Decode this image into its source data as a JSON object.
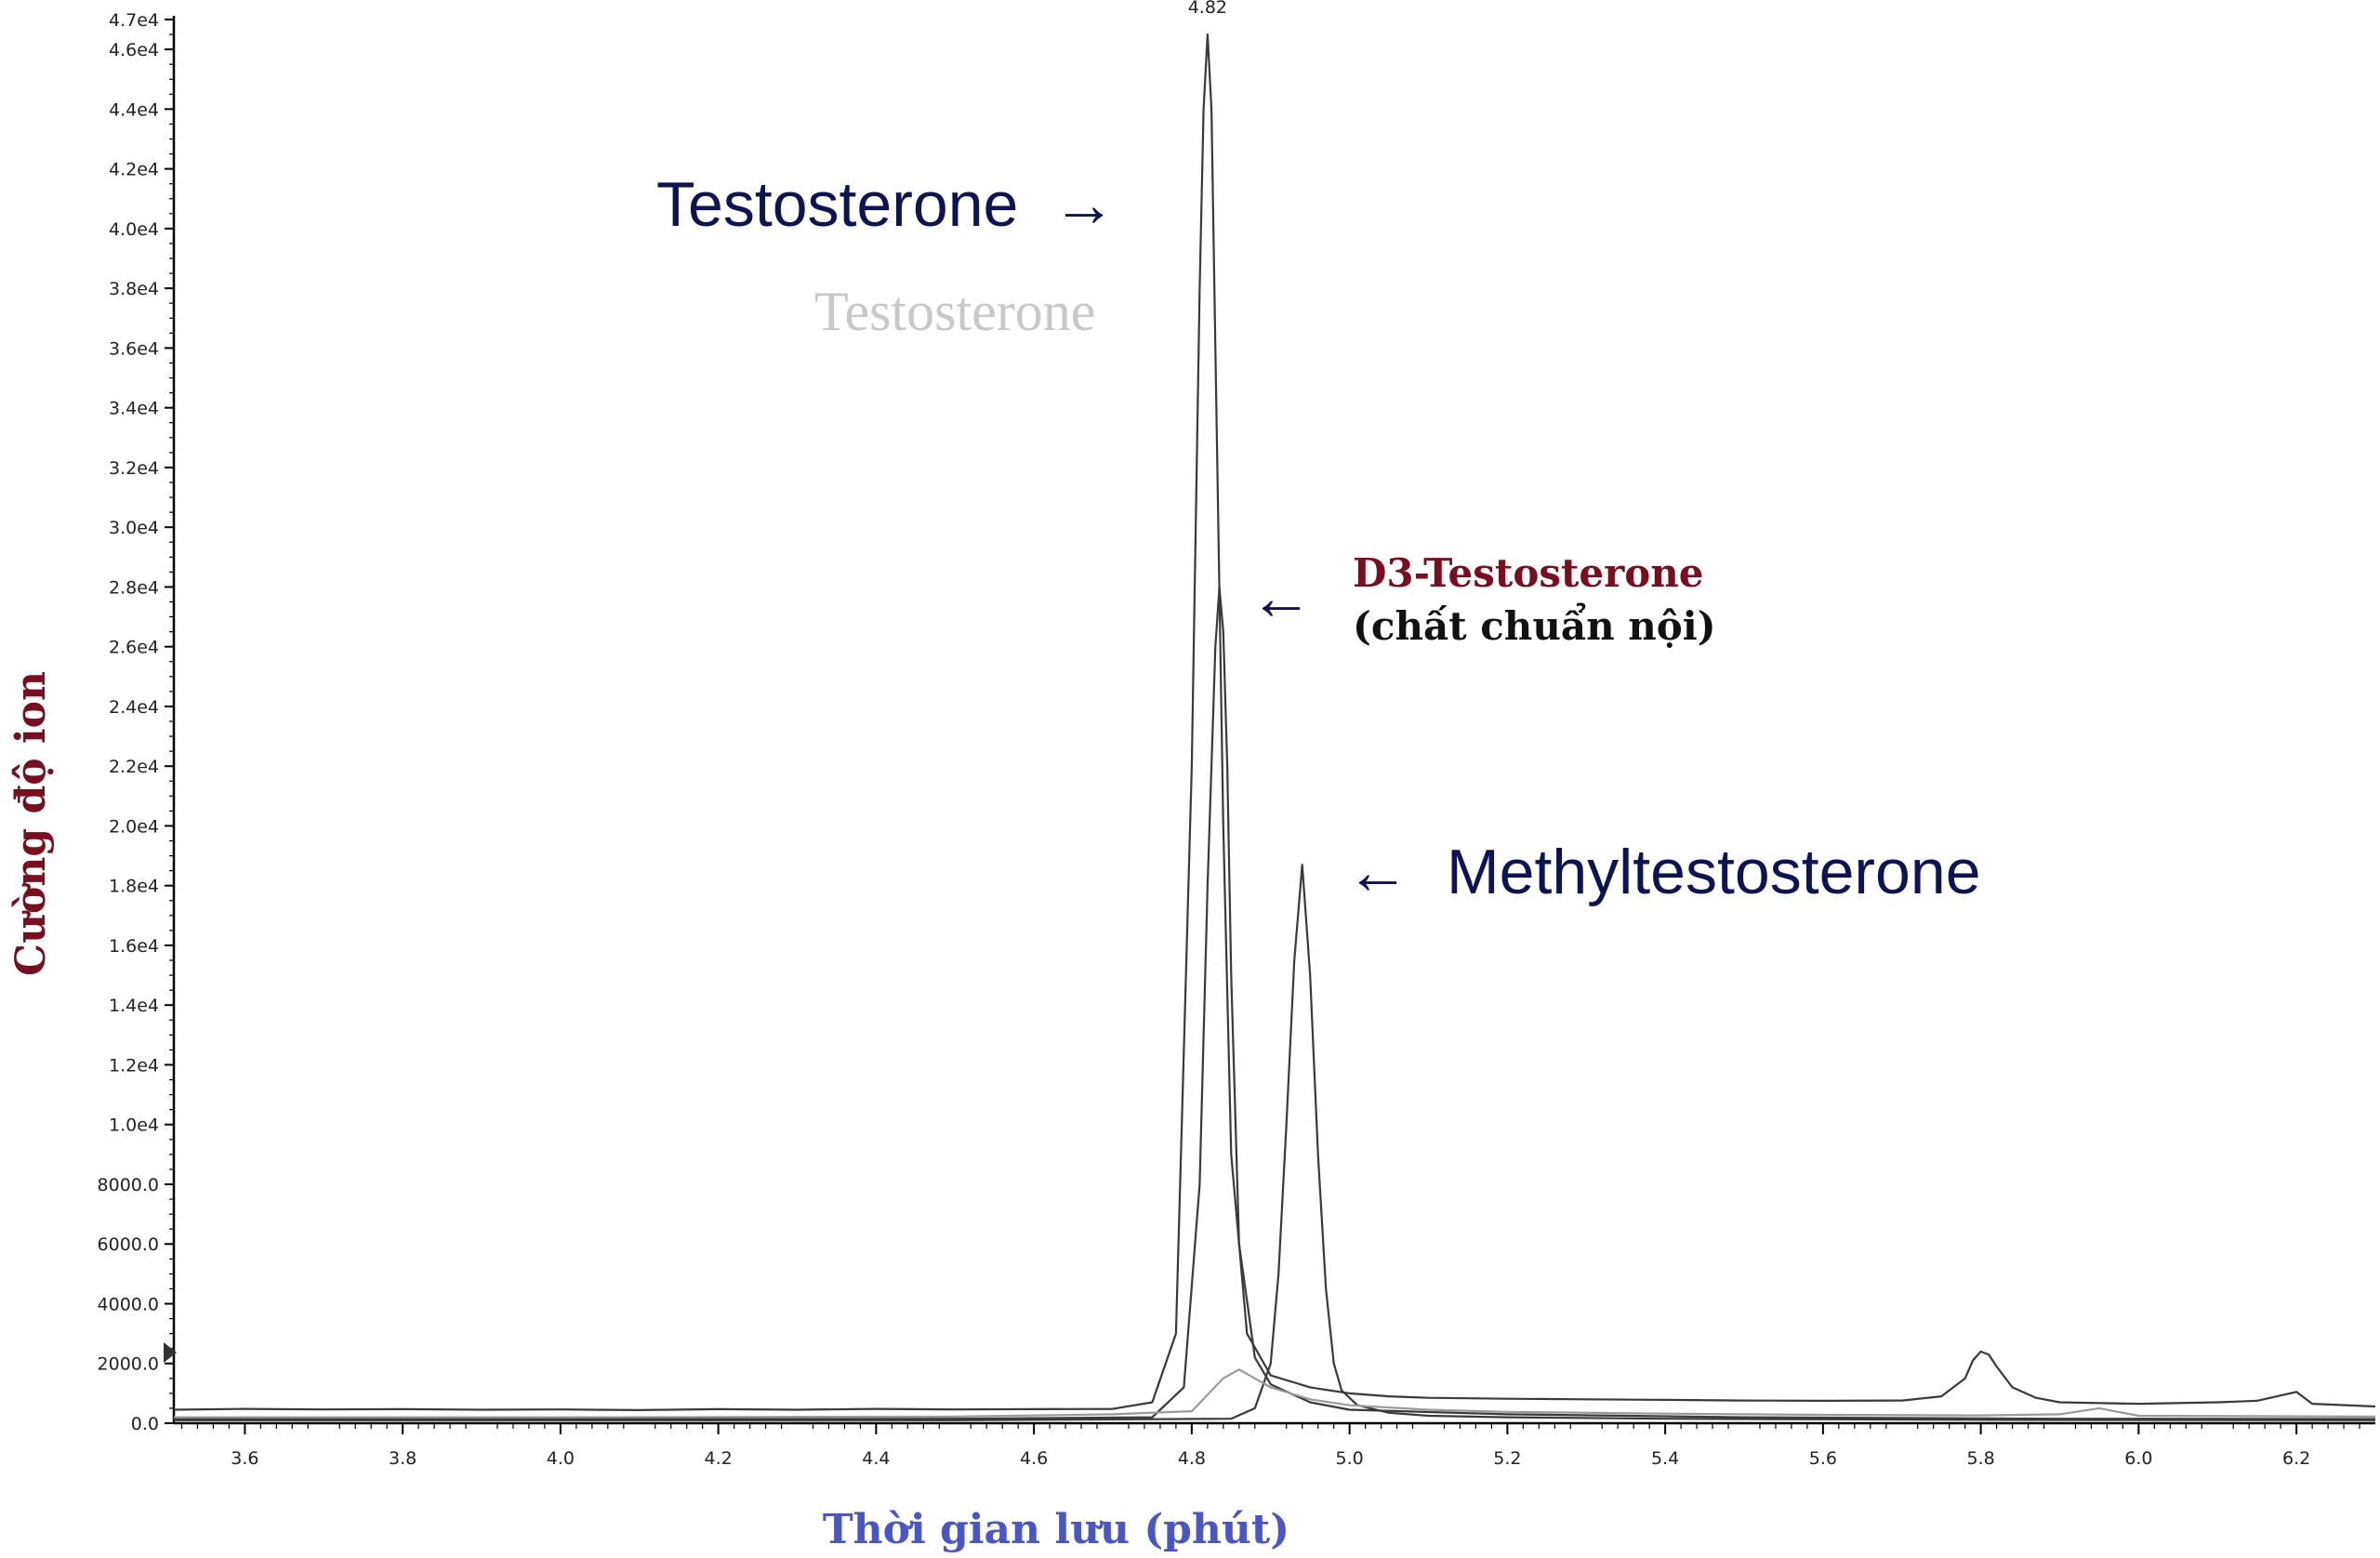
{
  "chart_data": {
    "type": "line",
    "title": "",
    "xlabel": "Thời gian lưu (phút)",
    "ylabel": "Cường độ ion",
    "xlim": [
      3.51,
      6.3
    ],
    "ylim": [
      0,
      47000
    ],
    "x_ticks": [
      3.6,
      3.8,
      4.0,
      4.2,
      4.4,
      4.6,
      4.8,
      5.0,
      5.2,
      5.4,
      5.6,
      5.8,
      6.0,
      6.2
    ],
    "x_tick_labels": [
      "3.6",
      "3.8",
      "4.0",
      "4.2",
      "4.4",
      "4.6",
      "4.8",
      "5.0",
      "5.2",
      "5.4",
      "5.6",
      "5.8",
      "6.0",
      "6.2"
    ],
    "y_ticks": [
      0,
      2000,
      4000,
      6000,
      8000,
      10000,
      12000,
      14000,
      16000,
      18000,
      20000,
      22000,
      24000,
      26000,
      28000,
      30000,
      32000,
      34000,
      36000,
      38000,
      40000,
      42000,
      44000,
      46000,
      47000
    ],
    "y_tick_labels": [
      "0.0",
      "2000.0",
      "4000.0",
      "6000.0",
      "8000.0",
      "1.0e4",
      "1.2e4",
      "1.4e4",
      "1.6e4",
      "1.8e4",
      "2.0e4",
      "2.2e4",
      "2.4e4",
      "2.6e4",
      "2.8e4",
      "3.0e4",
      "3.2e4",
      "3.4e4",
      "3.6e4",
      "3.8e4",
      "4.0e4",
      "4.2e4",
      "4.4e4",
      "4.6e4",
      "4.7e4"
    ],
    "grid": false,
    "legend": "none",
    "series": [
      {
        "color": "#3a3a3a",
        "x": [
          3.51,
          3.6,
          3.7,
          3.8,
          3.9,
          4.0,
          4.1,
          4.2,
          4.3,
          4.4,
          4.5,
          4.6,
          4.7,
          4.75,
          4.78,
          4.8,
          4.81,
          4.815,
          4.82,
          4.825,
          4.83,
          4.84,
          4.85,
          4.87,
          4.9,
          4.95,
          5.0,
          5.05,
          5.1,
          5.2,
          5.3,
          5.4,
          5.5,
          5.6,
          5.7,
          5.75,
          5.78,
          5.79,
          5.8,
          5.81,
          5.82,
          5.84,
          5.87,
          5.9,
          6.0,
          6.1,
          6.15,
          6.2,
          6.22,
          6.3
        ],
        "y": [
          450,
          480,
          460,
          470,
          450,
          460,
          440,
          470,
          450,
          480,
          460,
          470,
          480,
          700,
          3000,
          22000,
          38000,
          44000,
          46500,
          44000,
          36000,
          20000,
          9000,
          3000,
          1600,
          1200,
          1000,
          900,
          850,
          820,
          800,
          780,
          760,
          750,
          760,
          900,
          1500,
          2100,
          2400,
          2300,
          1900,
          1200,
          850,
          700,
          650,
          700,
          750,
          1050,
          650,
          560
        ]
      },
      {
        "color": "#3a3a3a",
        "x": [
          3.51,
          4.0,
          4.5,
          4.75,
          4.79,
          4.81,
          4.82,
          4.83,
          4.835,
          4.84,
          4.845,
          4.85,
          4.86,
          4.88,
          4.9,
          4.95,
          5.0,
          5.2,
          5.5,
          5.9,
          6.3
        ],
        "y": [
          150,
          140,
          150,
          200,
          1200,
          8000,
          18000,
          26000,
          28000,
          26500,
          22000,
          15000,
          6000,
          2200,
          1300,
          700,
          450,
          300,
          200,
          150,
          140
        ]
      },
      {
        "color": "#3a3a3a",
        "x": [
          3.51,
          4.0,
          4.5,
          4.85,
          4.88,
          4.9,
          4.91,
          4.92,
          4.93,
          4.94,
          4.95,
          4.96,
          4.97,
          4.98,
          4.99,
          5.01,
          5.05,
          5.1,
          5.2,
          5.4,
          5.6,
          5.9,
          6.3
        ],
        "y": [
          100,
          100,
          100,
          150,
          500,
          2000,
          5000,
          10000,
          15500,
          18700,
          15000,
          9000,
          4500,
          2000,
          1100,
          600,
          350,
          250,
          200,
          150,
          130,
          110,
          100
        ]
      },
      {
        "color": "#9a9a9a",
        "x": [
          3.51,
          4.0,
          4.5,
          4.7,
          4.8,
          4.84,
          4.86,
          4.9,
          4.95,
          5.0,
          5.1,
          5.2,
          5.4,
          5.6,
          5.8,
          5.9,
          5.95,
          6.0,
          6.3
        ],
        "y": [
          200,
          200,
          220,
          300,
          400,
          1500,
          1800,
          1200,
          800,
          600,
          450,
          380,
          320,
          280,
          260,
          300,
          500,
          250,
          220
        ]
      }
    ],
    "peak_labels": [
      {
        "x": 4.82,
        "text": "4.82"
      }
    ],
    "annotations": [
      {
        "text": "Testosterone",
        "arrow": "→"
      },
      {
        "text": "Testosterone"
      },
      {
        "text": "D3-Testosterone",
        "arrow": "←"
      },
      {
        "text": "(chất chuẩn nội)"
      },
      {
        "text": "Methyltestosterone",
        "arrow": "←"
      }
    ]
  }
}
